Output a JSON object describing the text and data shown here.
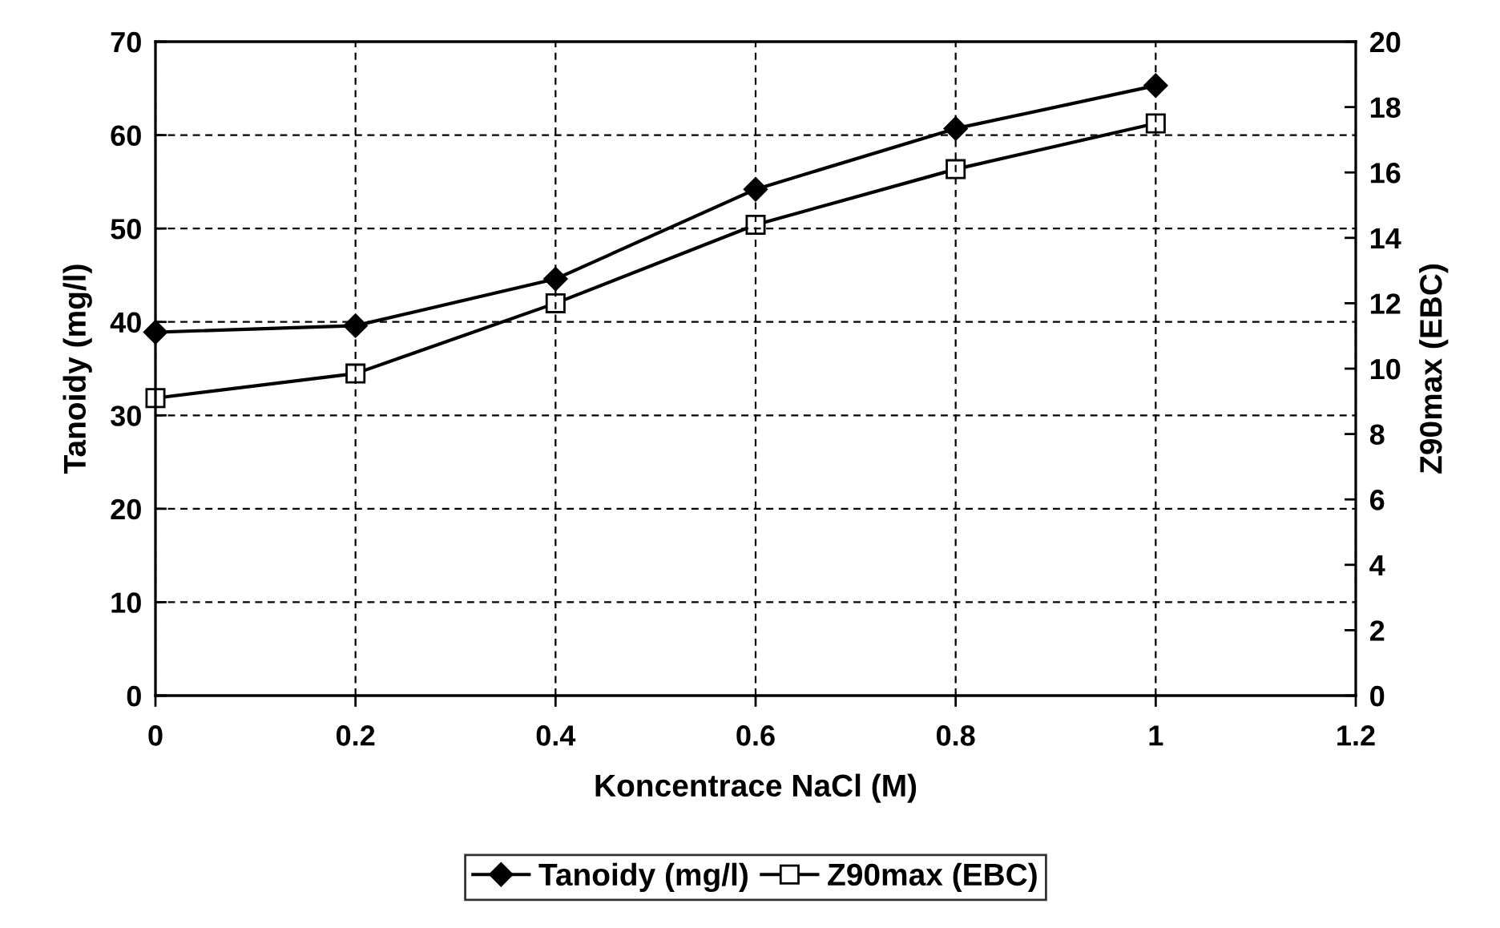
{
  "chart_data": {
    "type": "line",
    "x": [
      0,
      0.2,
      0.4,
      0.6,
      0.8,
      1
    ],
    "series": [
      {
        "name": "Tanoidy (mg/l)",
        "color": "#000000",
        "marker": "diamond",
        "values": [
          38.9,
          39.6,
          44.6,
          54.2,
          60.7,
          65.3
        ]
      },
      {
        "name": "Z90max (EBC)",
        "color": "#000000",
        "marker": "square",
        "axis": "y2",
        "values": [
          9.1,
          9.85,
          12.0,
          14.4,
          16.1,
          17.5
        ]
      }
    ],
    "xlabel": "Koncentrace NaCl (M)",
    "ylabel": "Tanoidy (mg/l)",
    "y2label": "Z90max (EBC)",
    "xlim": [
      0,
      1.2
    ],
    "xticks": [
      0,
      0.2,
      0.4,
      0.6,
      0.8,
      1,
      1.2
    ],
    "ylim": [
      0,
      70
    ],
    "yticks": [
      0,
      10,
      20,
      30,
      40,
      50,
      60,
      70
    ],
    "y2lim": [
      0,
      20
    ],
    "y2ticks": [
      0,
      2,
      4,
      6,
      8,
      10,
      12,
      14,
      16,
      18,
      20
    ],
    "grid": true,
    "legend": "bottom",
    "line_style": "solid"
  }
}
